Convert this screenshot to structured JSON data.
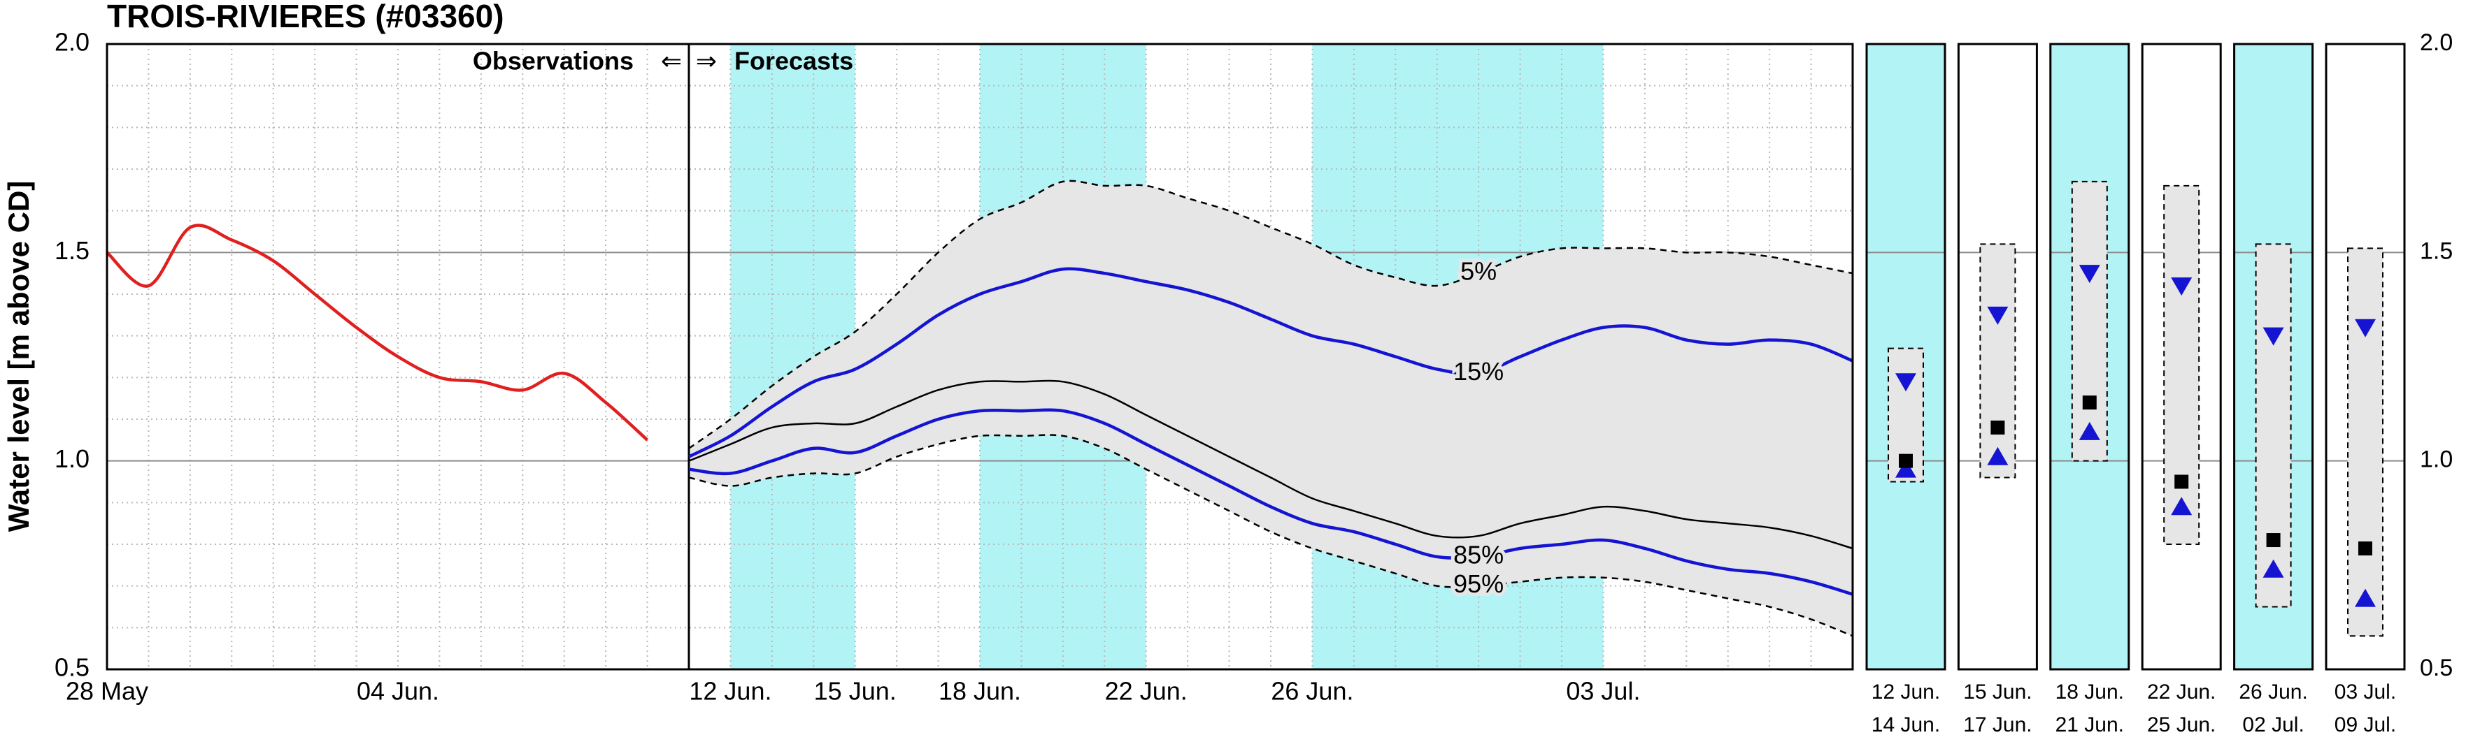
{
  "chart_data": [
    {
      "type": "line",
      "title": "TROIS-RIVIERES (#03360)",
      "y_label": "Water level [m above CD]",
      "categories": [
        "28 May",
        null,
        null,
        null,
        null,
        null,
        null,
        "04 Jun.",
        null,
        null,
        null,
        null,
        null,
        null,
        null,
        "12 Jun.",
        null,
        null,
        "15 Jun.",
        null,
        null,
        "18 Jun.",
        null,
        null,
        null,
        "22 Jun.",
        null,
        null,
        null,
        "26 Jun.",
        null,
        null,
        null,
        null,
        null,
        null,
        "03 Jul.",
        null,
        null,
        null,
        null,
        null,
        null
      ],
      "series": [
        {
          "color": "#e0201e",
          "values": [
            1.5,
            1.42,
            1.56,
            1.53,
            1.48,
            1.4,
            1.32,
            1.25,
            1.2,
            1.19,
            1.17,
            1.21,
            1.14,
            1.05,
            null,
            null,
            null,
            null,
            null,
            null,
            null,
            null,
            null,
            null,
            null,
            null,
            null,
            null,
            null,
            null,
            null,
            null,
            null,
            null,
            null,
            null,
            null,
            null,
            null,
            null,
            null,
            null,
            null
          ]
        },
        {
          "name": "5%",
          "color": "#000000",
          "dash": true,
          "values": [
            null,
            null,
            null,
            null,
            null,
            null,
            null,
            null,
            null,
            null,
            null,
            null,
            null,
            null,
            1.03,
            1.1,
            1.18,
            1.25,
            1.31,
            1.4,
            1.5,
            1.58,
            1.62,
            1.67,
            1.66,
            1.66,
            1.63,
            1.6,
            1.56,
            1.52,
            1.47,
            1.44,
            1.42,
            1.45,
            1.49,
            1.51,
            1.51,
            1.51,
            1.5,
            1.5,
            1.49,
            1.47,
            1.45
          ]
        },
        {
          "name": "15%",
          "color": "#1414d2",
          "values": [
            null,
            null,
            null,
            null,
            null,
            null,
            null,
            null,
            null,
            null,
            null,
            null,
            null,
            null,
            1.01,
            1.06,
            1.13,
            1.19,
            1.22,
            1.28,
            1.35,
            1.4,
            1.43,
            1.46,
            1.45,
            1.43,
            1.41,
            1.38,
            1.34,
            1.3,
            1.28,
            1.25,
            1.22,
            1.21,
            1.25,
            1.29,
            1.32,
            1.32,
            1.29,
            1.28,
            1.29,
            1.28,
            1.24
          ]
        },
        {
          "color": "#000000",
          "values": [
            null,
            null,
            null,
            null,
            null,
            null,
            null,
            null,
            null,
            null,
            null,
            null,
            null,
            null,
            1.0,
            1.04,
            1.08,
            1.09,
            1.09,
            1.13,
            1.17,
            1.19,
            1.19,
            1.19,
            1.16,
            1.11,
            1.06,
            1.01,
            0.96,
            0.91,
            0.88,
            0.85,
            0.82,
            0.82,
            0.85,
            0.87,
            0.89,
            0.88,
            0.86,
            0.85,
            0.84,
            0.82,
            0.79
          ]
        },
        {
          "name": "85%",
          "color": "#1414d2",
          "values": [
            null,
            null,
            null,
            null,
            null,
            null,
            null,
            null,
            null,
            null,
            null,
            null,
            null,
            null,
            0.98,
            0.97,
            1.0,
            1.03,
            1.02,
            1.06,
            1.1,
            1.12,
            1.12,
            1.12,
            1.09,
            1.04,
            0.99,
            0.94,
            0.89,
            0.85,
            0.83,
            0.8,
            0.77,
            0.77,
            0.79,
            0.8,
            0.81,
            0.79,
            0.76,
            0.74,
            0.73,
            0.71,
            0.68
          ]
        },
        {
          "name": "95%",
          "color": "#000000",
          "dash": true,
          "values": [
            null,
            null,
            null,
            null,
            null,
            null,
            null,
            null,
            null,
            null,
            null,
            null,
            null,
            null,
            0.96,
            0.94,
            0.96,
            0.97,
            0.97,
            1.01,
            1.04,
            1.06,
            1.06,
            1.06,
            1.03,
            0.98,
            0.93,
            0.88,
            0.83,
            0.79,
            0.76,
            0.73,
            0.7,
            0.7,
            0.71,
            0.72,
            0.72,
            0.71,
            0.69,
            0.67,
            0.65,
            0.62,
            0.58
          ]
        }
      ],
      "ylim": [
        0.5,
        2.0
      ],
      "yticks": [
        {
          "value": 0.5,
          "label": "0.5"
        },
        {
          "value": 1.0,
          "label": "1.0"
        },
        {
          "value": 1.5,
          "label": "1.5"
        },
        {
          "value": 2.0,
          "label": "2.0"
        }
      ],
      "grid": true,
      "minor_grid": true,
      "fill": "#e6e6e6",
      "bands": [
        [
          "12 Jun.",
          "15 Jun."
        ],
        [
          "18 Jun.",
          "22 Jun."
        ],
        [
          "26 Jun.",
          "03 Jul."
        ]
      ],
      "band_color": "#b2f4f6",
      "annotations": [
        "Observations",
        "⇐",
        "⇒",
        "Forecasts"
      ]
    },
    {
      "type": "box",
      "panels": [
        {
          "labels": [
            "12 Jun.",
            "14 Jun."
          ],
          "shaded": true,
          "min": 0.95,
          "max": 1.27,
          "median": 1.0,
          "upper": 1.19,
          "lower": 0.98
        },
        {
          "labels": [
            "15 Jun.",
            "17 Jun."
          ],
          "shaded": false,
          "min": 0.96,
          "max": 1.52,
          "median": 1.08,
          "upper": 1.35,
          "lower": 1.01
        },
        {
          "labels": [
            "18 Jun.",
            "21 Jun."
          ],
          "shaded": true,
          "min": 1.0,
          "max": 1.67,
          "median": 1.14,
          "upper": 1.45,
          "lower": 1.07
        },
        {
          "labels": [
            "22 Jun.",
            "25 Jun."
          ],
          "shaded": false,
          "min": 0.8,
          "max": 1.66,
          "median": 0.95,
          "upper": 1.42,
          "lower": 0.89
        },
        {
          "labels": [
            "26 Jun.",
            "02 Jul."
          ],
          "shaded": true,
          "min": 0.65,
          "max": 1.52,
          "median": 0.81,
          "upper": 1.3,
          "lower": 0.74
        },
        {
          "labels": [
            "03 Jul.",
            "09 Jul."
          ],
          "shaded": false,
          "min": 0.58,
          "max": 1.51,
          "median": 0.79,
          "upper": 1.32,
          "lower": 0.67
        }
      ],
      "ylim": [
        0.5,
        2.0
      ],
      "yticks": [
        {
          "value": 0.5,
          "label": "0.5"
        },
        {
          "value": 1.0,
          "label": "1.0"
        },
        {
          "value": 1.5,
          "label": "1.5"
        },
        {
          "value": 2.0,
          "label": "2.0"
        }
      ],
      "grid": true,
      "band_color": "#b2f4f6",
      "fill": "#e6e6e6",
      "marker_color": "#1414d2",
      "median_color": "#000000"
    }
  ]
}
